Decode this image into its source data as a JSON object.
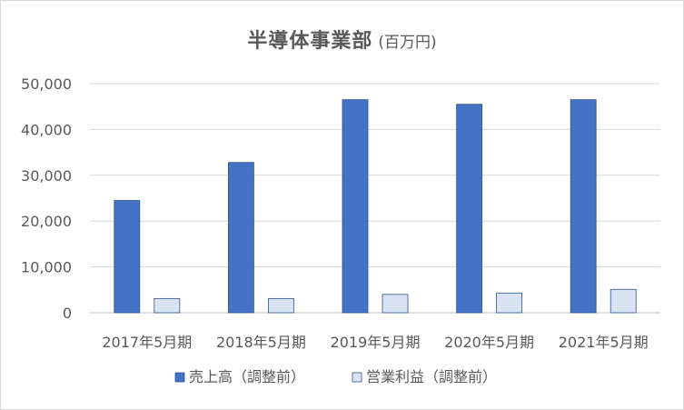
{
  "chart_data": {
    "type": "bar",
    "title": "半導体事業部",
    "subtitle": "(百万円)",
    "categories": [
      "2017年5月期",
      "2018年5月期",
      "2019年5月期",
      "2020年5月期",
      "2021年5月期"
    ],
    "series": [
      {
        "name": "売上高（調整前）",
        "color": "#4472c4",
        "values": [
          24500,
          32800,
          46500,
          45500,
          46500
        ]
      },
      {
        "name": "営業利益（調整前）",
        "color": "#dae3f3",
        "values": [
          3100,
          3100,
          4000,
          4300,
          5100
        ]
      }
    ],
    "ylim": [
      0,
      50000
    ],
    "yticks": [
      "0",
      "10,000",
      "20,000",
      "30,000",
      "40,000",
      "50,000"
    ],
    "ytick_values": [
      0,
      10000,
      20000,
      30000,
      40000,
      50000
    ],
    "grid": true,
    "legend_position": "bottom"
  }
}
